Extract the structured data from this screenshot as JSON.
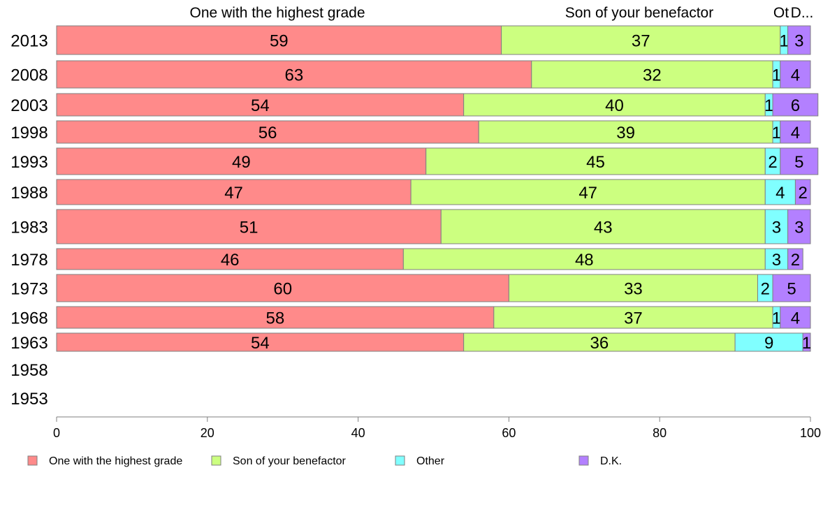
{
  "chart_data": {
    "type": "bar",
    "orientation": "horizontal",
    "stacked": true,
    "categories": [
      "2013",
      "2008",
      "2003",
      "1998",
      "1993",
      "1988",
      "1983",
      "1978",
      "1973",
      "1968",
      "1963",
      "1958",
      "1953"
    ],
    "series": [
      {
        "name": "One with the highest grade",
        "color": "#ff8a8a",
        "values": [
          59,
          63,
          54,
          56,
          49,
          47,
          51,
          46,
          60,
          58,
          54,
          null,
          null
        ]
      },
      {
        "name": "Son of your benefactor",
        "color": "#ccff80",
        "values": [
          37,
          32,
          40,
          39,
          45,
          47,
          43,
          48,
          33,
          37,
          36,
          null,
          null
        ]
      },
      {
        "name": "Other",
        "color": "#80ffff",
        "values": [
          1,
          1,
          1,
          1,
          2,
          4,
          3,
          3,
          2,
          1,
          9,
          null,
          null
        ]
      },
      {
        "name": "D.K.",
        "color": "#b380ff",
        "values": [
          3,
          4,
          6,
          4,
          5,
          2,
          3,
          2,
          5,
          4,
          1,
          null,
          null
        ]
      }
    ],
    "column_headers": [
      "One with the highest grade",
      "Son of your benefactor",
      "Ot",
      "D..."
    ],
    "xlim": [
      0,
      100
    ],
    "xticks": [
      "0",
      "20",
      "40",
      "60",
      "80",
      "100"
    ],
    "legend_position": "bottom",
    "grid": false
  }
}
